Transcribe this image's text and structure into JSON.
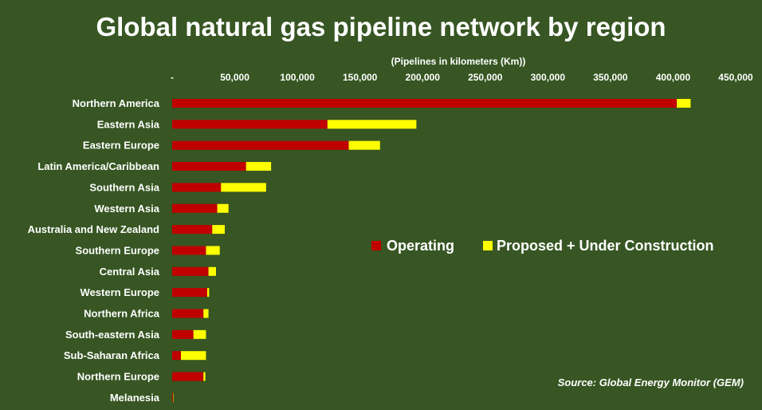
{
  "chart_data": {
    "type": "bar",
    "orientation": "horizontal",
    "stacked": true,
    "title": "Global natural gas pipeline network by region",
    "xlabel": "(Pipelines in kilometers (Km))",
    "xaxis_position": "top",
    "xlim": [
      0,
      450000
    ],
    "xticks": [
      0,
      50000,
      100000,
      150000,
      200000,
      250000,
      300000,
      350000,
      400000,
      450000
    ],
    "xtick_labels": [
      "-",
      "50,000",
      "100,000",
      "150,000",
      "200,000",
      "250,000",
      "300,000",
      "350,000",
      "400,000",
      "450,000"
    ],
    "grid": false,
    "legend_position": "right-middle",
    "categories": [
      "Northern America",
      "Eastern Asia",
      "Eastern Europe",
      "Latin America/Caribbean",
      "Southern Asia",
      "Western Asia",
      "Australia and New Zealand",
      "Southern Europe",
      "Central Asia",
      "Western Europe",
      "Northern Africa",
      "South-eastern Asia",
      "Sub-Saharan Africa",
      "Northern Europe",
      "Melanesia"
    ],
    "series": [
      {
        "name": "Operating",
        "color": "#c00000",
        "values": [
          403000,
          124000,
          141000,
          59000,
          39000,
          36000,
          32000,
          27000,
          29000,
          28000,
          25000,
          17000,
          7000,
          25000,
          700
        ]
      },
      {
        "name": "Proposed +  Under Construction",
        "color": "#ffff00",
        "values": [
          11000,
          71000,
          25000,
          20000,
          36000,
          9000,
          10000,
          11000,
          6000,
          1500,
          4000,
          10000,
          20000,
          1500,
          300
        ]
      }
    ],
    "annotations": [
      "Source: Global Energy Monitor (GEM)"
    ]
  }
}
